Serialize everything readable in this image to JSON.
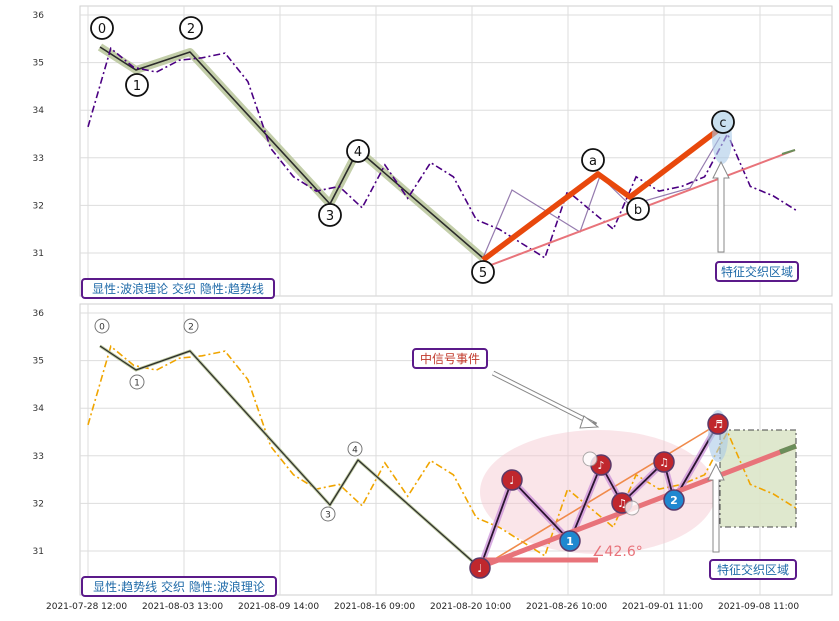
{
  "chart_data": [
    {
      "type": "line",
      "panel": "top",
      "annotation_box": "显性:波浪理论 交织 隐性:趋势线",
      "y_ticks": [
        "36",
        "35",
        "34",
        "33",
        "32",
        "31"
      ],
      "ylim": [
        30.1,
        36.2
      ],
      "x": [
        "2021-07-28 12:00",
        "2021-07-29",
        "2021-07-30",
        "2021-08-02",
        "2021-08-03 13:00",
        "2021-08-04",
        "2021-08-05",
        "2021-08-06",
        "2021-08-09 14:00",
        "2021-08-10",
        "2021-08-11",
        "2021-08-13",
        "2021-08-16 09:00",
        "2021-08-17",
        "2021-08-18",
        "2021-08-19",
        "2021-08-20 10:00",
        "2021-08-23",
        "2021-08-24",
        "2021-08-25",
        "2021-08-26 10:00",
        "2021-08-27",
        "2021-08-30",
        "2021-08-31",
        "2021-09-01 11:00",
        "2021-09-02",
        "2021-09-03",
        "2021-09-06",
        "2021-09-08 11:00",
        "2021-09-09",
        "2021-09-10",
        "2021-09-13"
      ],
      "series": [
        {
          "style": "dash-dot",
          "color": "#4b0082",
          "values": [
            33.65,
            35.3,
            34.9,
            34.8,
            35.05,
            35.1,
            35.2,
            34.6,
            33.2,
            32.6,
            32.3,
            32.4,
            31.95,
            32.85,
            32.15,
            32.9,
            32.6,
            31.7,
            31.5,
            31.2,
            30.9,
            32.3,
            31.9,
            31.5,
            32.6,
            32.3,
            32.4,
            32.6,
            33.5,
            32.4,
            32.2,
            31.9
          ]
        }
      ],
      "wave_labels": [
        {
          "label": "0",
          "x": "2021-07-29",
          "y": 35.35
        },
        {
          "label": "1",
          "x": "2021-08-02",
          "y": 34.8
        },
        {
          "label": "2",
          "x": "2021-08-04",
          "y": 35.25
        },
        {
          "label": "3",
          "x": "2021-08-16 09:00",
          "y": 31.95
        },
        {
          "label": "4",
          "x": "2021-08-17",
          "y": 32.95
        },
        {
          "label": "5",
          "x": "2021-08-25",
          "y": 30.85
        },
        {
          "label": "a",
          "x": "2021-09-01 11:00",
          "y": 32.65
        },
        {
          "label": "b",
          "x": "2021-09-02",
          "y": 32.2
        },
        {
          "label": "c",
          "x": "2021-09-08 11:00",
          "y": 33.5
        }
      ],
      "callout": "特征交织区域"
    },
    {
      "type": "line",
      "panel": "bottom",
      "annotation_box": "显性:趋势线 交织 隐性:波浪理论",
      "y_ticks": [
        "36",
        "35",
        "34",
        "33",
        "32",
        "31"
      ],
      "ylim": [
        30.1,
        36.2
      ],
      "x_ticks": [
        "2021-07-28 12:00",
        "2021-08-03 13:00",
        "2021-08-09 14:00",
        "2021-08-16 09:00",
        "2021-08-20 10:00",
        "2021-08-26 10:00",
        "2021-09-01 11:00",
        "2021-09-08 11:00"
      ],
      "series": [
        {
          "style": "dash-dot",
          "color": "#f0a500",
          "values": [
            33.65,
            35.3,
            34.9,
            34.8,
            35.05,
            35.1,
            35.2,
            34.6,
            33.2,
            32.6,
            32.3,
            32.4,
            31.95,
            32.85,
            32.15,
            32.9,
            32.6,
            31.7,
            31.5,
            31.2,
            30.9,
            32.3,
            31.9,
            31.5,
            32.6,
            32.3,
            32.4,
            32.6,
            33.5,
            32.4,
            32.2,
            31.9
          ]
        }
      ],
      "wave_labels": [
        "0",
        "1",
        "2",
        "3",
        "4"
      ],
      "trendline_angle_label": "∠42.6°",
      "signal_label": "中信号事件",
      "callout": "特征交织区域",
      "touch_markers": [
        "♩",
        "♪",
        "♫",
        "♬",
        "1",
        "2"
      ]
    }
  ]
}
